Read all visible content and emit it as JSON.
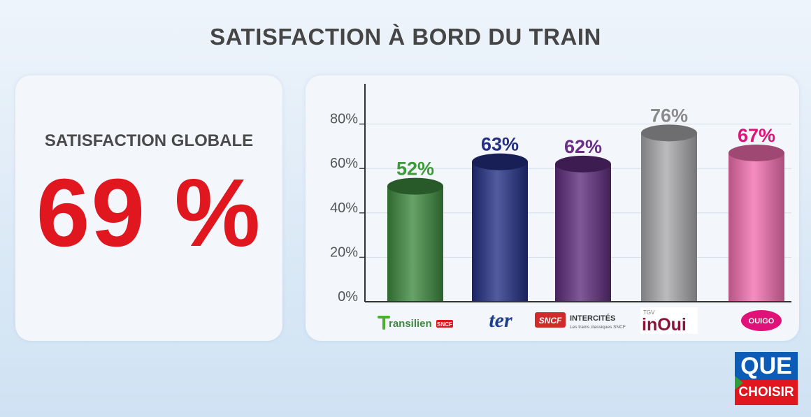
{
  "title": "SATISFACTION À BORD DU TRAIN",
  "global": {
    "label": "SATISFACTION GLOBALE",
    "value": "69 %"
  },
  "chart_data": {
    "type": "bar",
    "title": "SATISFACTION À BORD DU TRAIN",
    "categories": [
      "Transilien SNCF",
      "TER",
      "SNCF Intercités",
      "TGV inOui",
      "Ouigo"
    ],
    "values": [
      52,
      63,
      62,
      76,
      67
    ],
    "value_labels": [
      "52%",
      "63%",
      "62%",
      "76%",
      "67%"
    ],
    "y_ticks": [
      "0%",
      "20%",
      "40%",
      "60%",
      "80%"
    ],
    "ylim": [
      0,
      100
    ],
    "grid": true,
    "colors": [
      "#3d8a3f",
      "#232f84",
      "#5e2d7c",
      "#a9a9ac",
      "#f46fb1"
    ],
    "label_colors": [
      "#3d9a3a",
      "#232f84",
      "#6a2f86",
      "#8b8b8b",
      "#e0127a"
    ]
  },
  "brands": {
    "transilien": {
      "name": "ransilien",
      "tag": "SNCF"
    },
    "ter": {
      "name": "ter"
    },
    "intercites": {
      "sncf": "SNCF",
      "name": "INTERCITÉS",
      "subtitle": "Les trains classiques SNCF"
    },
    "inoui": {
      "tag": "TGV",
      "name": "inOui"
    },
    "ouigo": {
      "name": "OUIGO"
    }
  },
  "logo": {
    "top": "QUE",
    "bottom": "CHOISIR"
  }
}
